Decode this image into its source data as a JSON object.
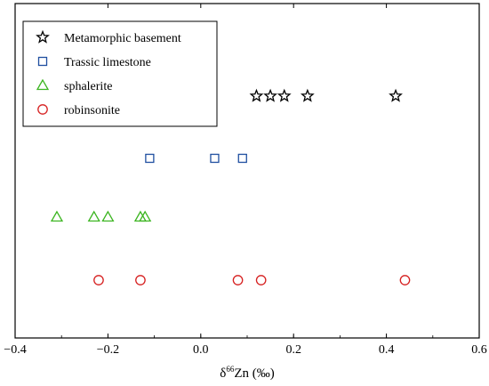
{
  "chart_data": {
    "type": "scatter",
    "title": "",
    "xlabel": "δ66Zn (‰)",
    "xlabel_parts": {
      "delta": "δ",
      "sup": "66",
      "rest": "Zn (‰)"
    },
    "ylabel": "",
    "xlim": [
      -0.4,
      0.6
    ],
    "xticks": [
      "−0.4",
      "−0.2",
      "0.0",
      "0.2",
      "0.4",
      "0.6"
    ],
    "xtick_values": [
      -0.4,
      -0.2,
      0.0,
      0.2,
      0.4,
      0.6
    ],
    "grid": false,
    "legend_position": "top-left",
    "series": [
      {
        "name": "Metamorphic basement",
        "marker": "star",
        "color": "#000000",
        "x": [
          0.12,
          0.15,
          0.18,
          0.23,
          0.42
        ]
      },
      {
        "name": "Trassic limestone",
        "marker": "square",
        "color": "#1f4fa0",
        "x": [
          -0.11,
          0.03,
          0.09
        ]
      },
      {
        "name": "sphalerite",
        "marker": "triangle",
        "color": "#3cb521",
        "x": [
          -0.31,
          -0.23,
          -0.2,
          -0.13,
          -0.12
        ]
      },
      {
        "name": "robinsonite",
        "marker": "circle",
        "color": "#d62020",
        "x": [
          -0.22,
          -0.13,
          0.08,
          0.13,
          0.44
        ]
      }
    ]
  }
}
